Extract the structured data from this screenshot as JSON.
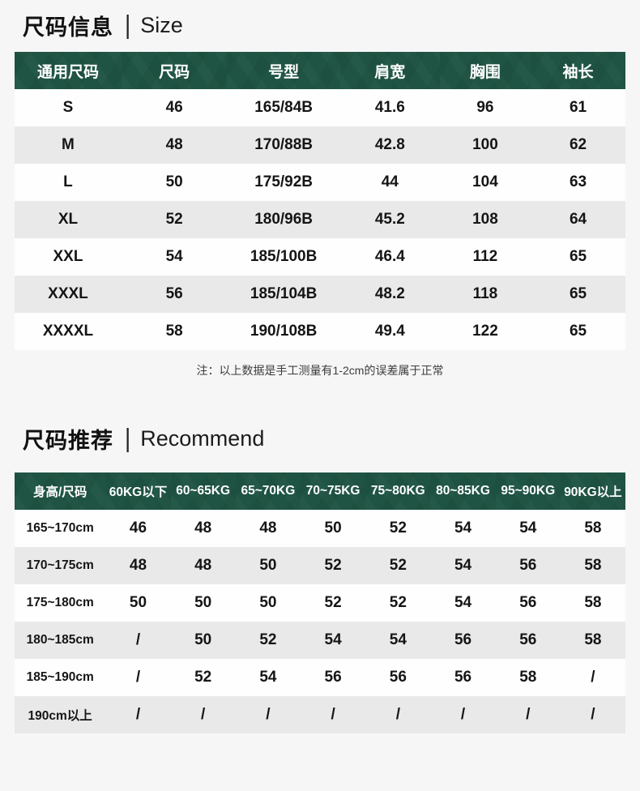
{
  "colors": {
    "header_green": "#1f5444",
    "row_alt_gray": "#e9e9e9",
    "row_white": "#fefefe",
    "page_bg": "#f6f6f7",
    "header_text": "#ffffff"
  },
  "size_section": {
    "title_zh": "尺码信息",
    "title_sep": "|",
    "title_en": "Size",
    "table": {
      "headers": [
        "通用尺码",
        "尺码",
        "号型",
        "肩宽",
        "胸围",
        "袖长"
      ],
      "rows": [
        [
          "S",
          "46",
          "165/84B",
          "41.6",
          "96",
          "61"
        ],
        [
          "M",
          "48",
          "170/88B",
          "42.8",
          "100",
          "62"
        ],
        [
          "L",
          "50",
          "175/92B",
          "44",
          "104",
          "63"
        ],
        [
          "XL",
          "52",
          "180/96B",
          "45.2",
          "108",
          "64"
        ],
        [
          "XXL",
          "54",
          "185/100B",
          "46.4",
          "112",
          "65"
        ],
        [
          "XXXL",
          "56",
          "185/104B",
          "48.2",
          "118",
          "65"
        ],
        [
          "XXXXL",
          "58",
          "190/108B",
          "49.4",
          "122",
          "65"
        ]
      ]
    },
    "note": "注：以上数据是手工测量有1-2cm的误差属于正常"
  },
  "recommend_section": {
    "title_zh": "尺码推荐",
    "title_sep": "|",
    "title_en": "Recommend",
    "table": {
      "headers": [
        "身高/尺码",
        "60KG以下",
        "60~65KG",
        "65~70KG",
        "70~75KG",
        "75~80KG",
        "80~85KG",
        "95~90KG",
        "90KG以上"
      ],
      "rows": [
        [
          "165~170cm",
          "46",
          "48",
          "48",
          "50",
          "52",
          "54",
          "54",
          "58"
        ],
        [
          "170~175cm",
          "48",
          "48",
          "50",
          "52",
          "52",
          "54",
          "56",
          "58"
        ],
        [
          "175~180cm",
          "50",
          "50",
          "50",
          "52",
          "52",
          "54",
          "56",
          "58"
        ],
        [
          "180~185cm",
          "/",
          "50",
          "52",
          "54",
          "54",
          "56",
          "56",
          "58"
        ],
        [
          "185~190cm",
          "/",
          "52",
          "54",
          "56",
          "56",
          "56",
          "58",
          "/"
        ],
        [
          "190cm以上",
          "/",
          "/",
          "/",
          "/",
          "/",
          "/",
          "/",
          "/"
        ]
      ]
    }
  }
}
